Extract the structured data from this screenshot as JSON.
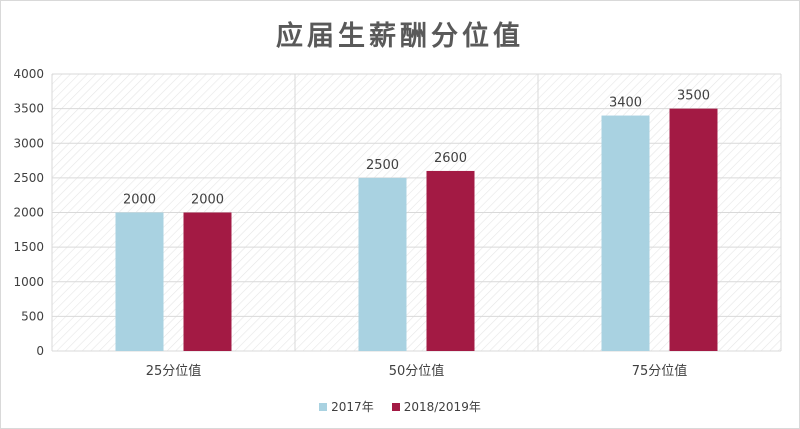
{
  "title": "应届生薪酬分位值",
  "colors": {
    "series_2017": "#a9d2e1",
    "series_2018_2019": "#a31a44",
    "grid": "#d9d9d9",
    "text": "#404040"
  },
  "chart_data": {
    "type": "bar",
    "title": "应届生薪酬分位值",
    "categories": [
      "25分位值",
      "50分位值",
      "75分位值"
    ],
    "series": [
      {
        "name": "2017年",
        "values": [
          2000,
          2500,
          3400
        ]
      },
      {
        "name": "2018/2019年",
        "values": [
          2000,
          2600,
          3500
        ]
      }
    ],
    "y_ticks": [
      "0",
      "500",
      "1000",
      "1500",
      "2000",
      "2500",
      "3000",
      "3500",
      "4000"
    ],
    "ylim": [
      0,
      4000
    ],
    "grid": true,
    "legend_position": "bottom"
  }
}
